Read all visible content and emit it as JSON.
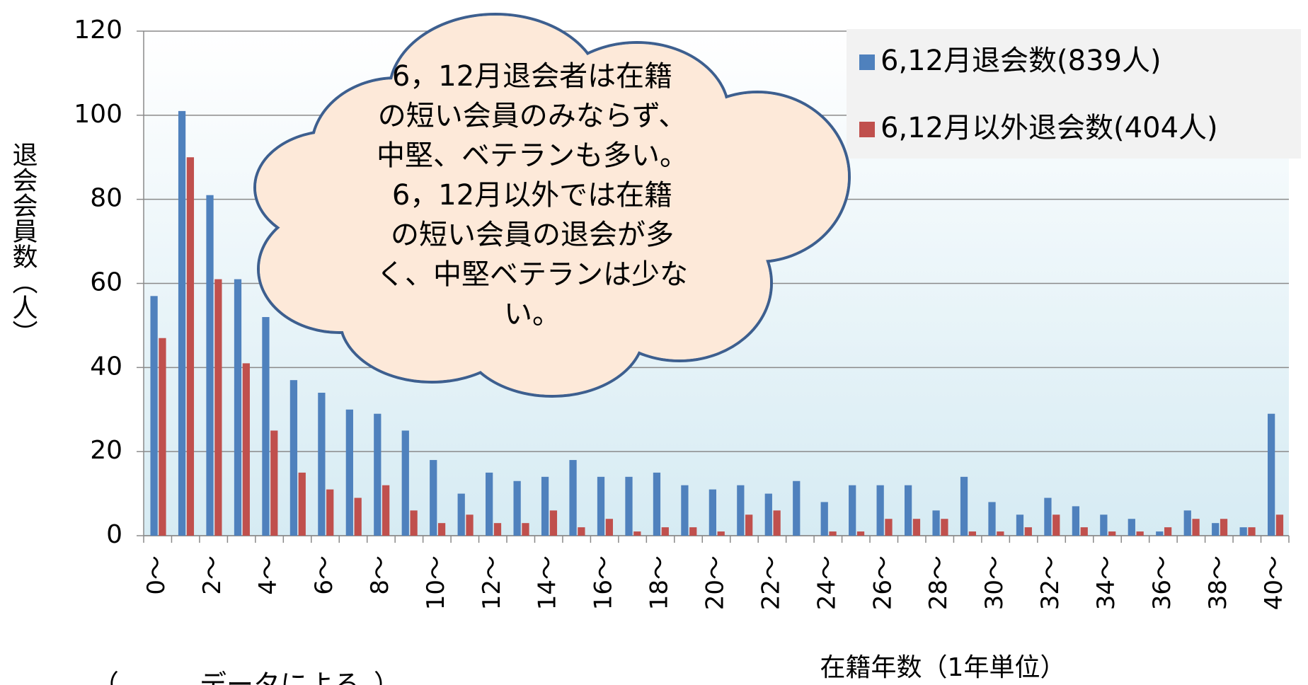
{
  "chart_data": {
    "type": "bar",
    "y_label": "退会会員数（人）",
    "x_label": "在籍年数（1年単位）",
    "footnote": "（　　　データによる。）",
    "annotation": [
      "6，12月退会者は在籍",
      "の短い会員のみならず、",
      "中堅、ベテランも多い。",
      "6，12月以外では在籍",
      "の短い会員の退会が多",
      "く、中堅ベテランは少な",
      "い。"
    ],
    "categories": [
      "0～",
      null,
      "2～",
      null,
      "4～",
      null,
      "6～",
      null,
      "8～",
      null,
      "10～",
      null,
      "12～",
      null,
      "14～",
      null,
      "16～",
      null,
      "18～",
      null,
      "20～",
      null,
      "22～",
      null,
      "24～",
      null,
      "26～",
      null,
      "28～",
      null,
      "30～",
      null,
      "32～",
      null,
      "34～",
      null,
      "36～",
      null,
      "38～",
      null,
      "40～"
    ],
    "series": [
      {
        "name": "6,12月退会数(839人)",
        "color": "#4f81bd",
        "values": [
          57,
          101,
          81,
          61,
          52,
          37,
          34,
          30,
          29,
          25,
          18,
          10,
          15,
          13,
          14,
          18,
          14,
          14,
          15,
          12,
          11,
          12,
          10,
          13,
          8,
          12,
          12,
          12,
          6,
          14,
          8,
          5,
          9,
          7,
          5,
          4,
          1,
          6,
          3,
          2,
          29
        ]
      },
      {
        "name": "6,12月以外退会数(404人)",
        "color": "#c0504d",
        "values": [
          47,
          90,
          61,
          41,
          25,
          15,
          11,
          9,
          12,
          6,
          3,
          5,
          3,
          3,
          6,
          2,
          4,
          1,
          2,
          2,
          1,
          5,
          6,
          0,
          1,
          1,
          4,
          4,
          4,
          1,
          1,
          2,
          5,
          2,
          1,
          1,
          2,
          4,
          4,
          2,
          5
        ]
      }
    ],
    "ylim": [
      0,
      120
    ],
    "yticks": [
      0,
      20,
      40,
      60,
      80,
      100,
      120
    ],
    "grid": true,
    "legend": "top-right"
  }
}
